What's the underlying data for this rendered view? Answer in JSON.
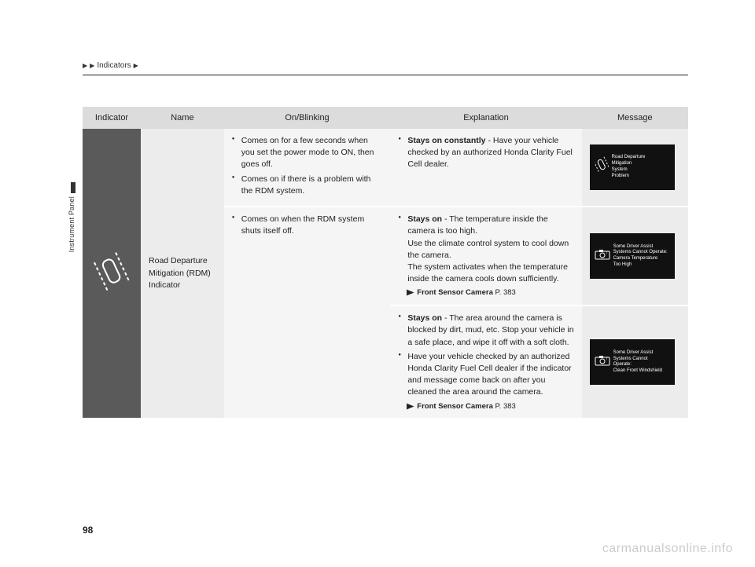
{
  "breadcrumb": {
    "text": "Indicators"
  },
  "sidebar": {
    "label": "Instrument Panel"
  },
  "headers": {
    "indicator": "Indicator",
    "name": "Name",
    "onblink": "On/Blinking",
    "explain": "Explanation",
    "message": "Message"
  },
  "name_cell": "Road Departure Mitigation (RDM) Indicator",
  "rows": [
    {
      "onblink": [
        "Comes on for a few seconds when you set the power mode to ON, then goes off.",
        "Comes on if there is a problem with the RDM system."
      ],
      "explain_lead": "Stays on constantly",
      "explain_rest": " - Have your vehicle checked by an authorized Honda Clarity Fuel Cell dealer.",
      "msg": "Road Departure\nMitigation\nSystem\nProblem"
    },
    {
      "onblink": [
        "Comes on when the RDM system shuts itself off."
      ],
      "explain_lead": "Stays on",
      "explain_rest": " - The temperature inside the camera is too high.",
      "explain_extra": [
        "Use the climate control system to cool down the camera.",
        "The system activates when the temperature inside the camera cools down sufficiently."
      ],
      "ref_label": "Front Sensor Camera",
      "ref_page": "P. 383",
      "msg": "Some Driver Assist\nSystems Cannot Operate:\nCamera Temperature\nToo High"
    },
    {
      "explain_items": [
        {
          "lead": "Stays on",
          "rest": " - The area around the camera is blocked by dirt, mud, etc. Stop your vehicle in a safe place, and wipe it off with a soft cloth."
        },
        {
          "lead": "",
          "rest": "Have your vehicle checked by an authorized Honda Clarity Fuel Cell dealer if the indicator and message come back on after you cleaned the area around the camera."
        }
      ],
      "ref_label": "Front Sensor Camera",
      "ref_page": "P. 383",
      "msg": "Some Driver Assist\nSystems Cannot\nOperate:\nClean Front Windshield"
    }
  ],
  "page_number": "98",
  "watermark": "carmanualsonline.info",
  "colors": {
    "header_bg": "#dcdcdc",
    "indicator_bg": "#5a5a5a",
    "name_bg": "#ececec",
    "body_bg": "#f5f5f5",
    "msg_bg": "#ececec",
    "msg_box_bg": "#111111"
  }
}
